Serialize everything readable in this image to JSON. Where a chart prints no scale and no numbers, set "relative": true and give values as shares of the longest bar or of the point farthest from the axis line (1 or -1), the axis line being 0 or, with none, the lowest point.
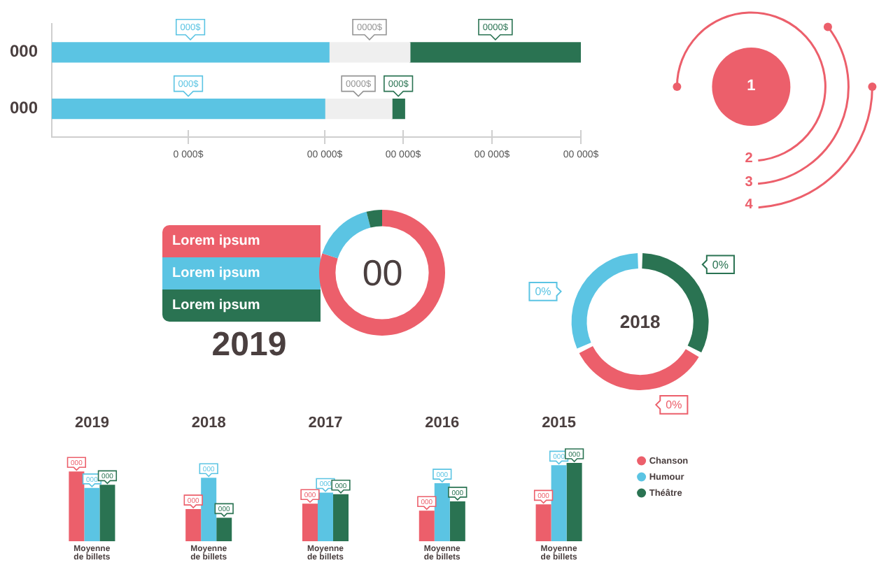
{
  "chart_data": [
    {
      "type": "bar",
      "orientation": "horizontal",
      "stacked": true,
      "relative": true,
      "categories": [
        "000",
        "000"
      ],
      "series": [
        {
          "color": "#5bc4e3",
          "values": [
            0.524,
            0.516
          ]
        },
        {
          "color": "#efefef",
          "values": [
            0.153,
            0.127
          ]
        },
        {
          "color": "#2a7352",
          "values": [
            0.323,
            0.024
          ]
        }
      ],
      "annotations": [
        "000$",
        "0000$",
        "0000$",
        "000$",
        "0000$",
        "000$",
        "0 000$",
        {
          "text": "00 000$",
          "x": 0.516
        },
        {
          "text": "00 000$",
          "x": 0.664
        },
        "00 000$",
        {
          "text": "00 000$",
          "x": 1
        }
      ]
    },
    {
      "type": "other",
      "annotations": [
        "1",
        "2",
        "3",
        "4"
      ]
    },
    {
      "type": "donut",
      "title": "2019",
      "categories": [
        "Lorem ipsum",
        "Lorem ipsum",
        "Lorem ipsum"
      ],
      "values": [
        80,
        16,
        4
      ],
      "colors": [
        "#ec5f6b",
        "#5bc4e3",
        "#2a7352"
      ],
      "annotations": [
        "00"
      ],
      "legend": "left"
    },
    {
      "type": "donut",
      "title": "2018",
      "categories": [
        null,
        null,
        null
      ],
      "values": [
        33,
        35,
        32
      ],
      "colors": [
        "#2a7352",
        "#ec5f6b",
        "#5bc4e3"
      ],
      "annotations": [
        "0%",
        "0%",
        "0%"
      ]
    },
    {
      "type": "bar",
      "categories": [
        "2019",
        "2018",
        "2017",
        "2016",
        "2015"
      ],
      "relative": true,
      "series": [
        {
          "name": "Chanson",
          "color": "#ec5f6b",
          "values": [
            0.89,
            0.41,
            0.48,
            0.39,
            0.47
          ]
        },
        {
          "name": "Humour",
          "color": "#5bc4e3",
          "values": [
            0.68,
            0.81,
            0.62,
            0.74,
            0.97
          ]
        },
        {
          "name": "Théâtre",
          "color": "#2a7352",
          "values": [
            0.72,
            0.3,
            0.6,
            0.51,
            1
          ]
        }
      ],
      "annotations": [
        "000",
        "000",
        "000",
        "000",
        "000",
        "000",
        "000",
        "000",
        "000",
        "000",
        "000",
        "000",
        "000",
        "000",
        "000",
        "Moyenne de billets",
        "Moyenne de billets",
        "Moyenne de billets",
        "Moyenne de billets",
        "Moyenne de billets"
      ],
      "legend": "right"
    }
  ]
}
